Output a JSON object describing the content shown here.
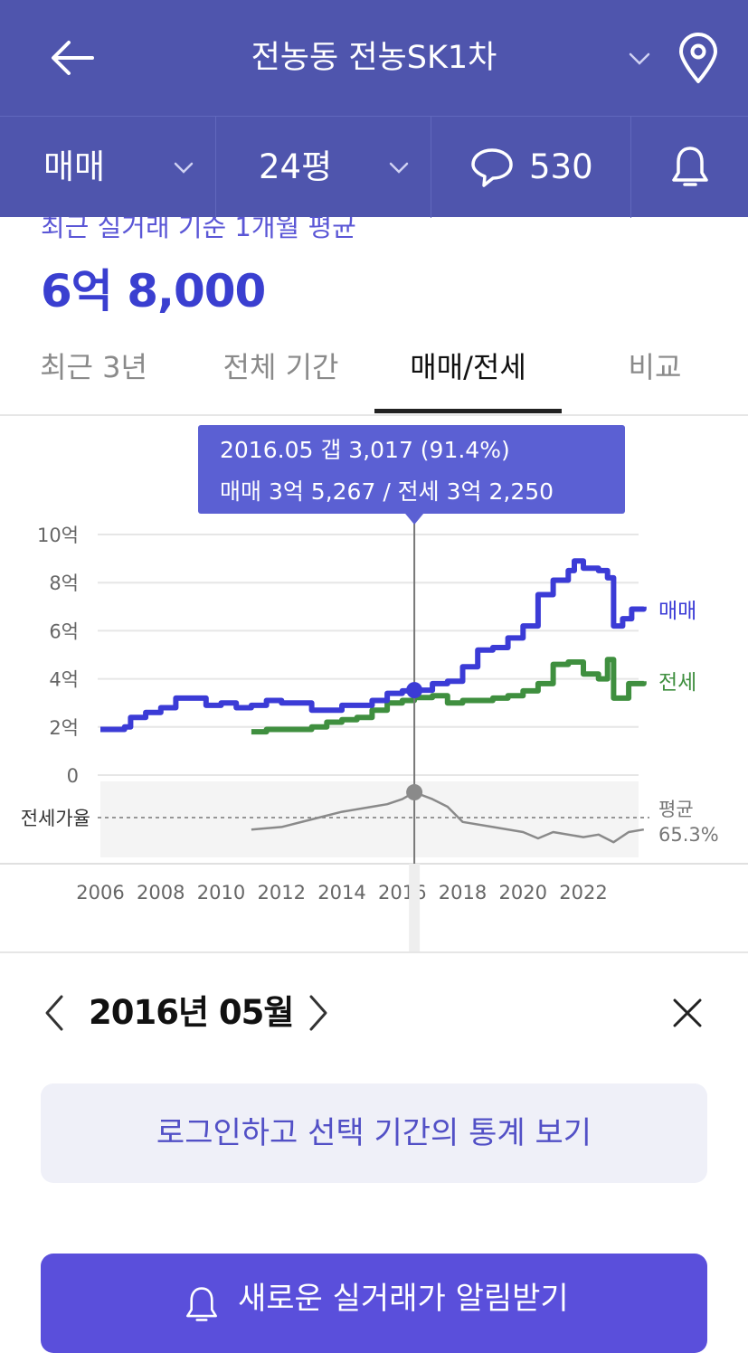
{
  "header": {
    "title": "전농동 전농SK1차",
    "trade_type": "매매",
    "area": "24평",
    "comment_count": "530"
  },
  "summary": {
    "label": "최근 실거래 기준 1개월 평균",
    "price": "6억 8,000"
  },
  "tabs": [
    {
      "label": "최근 3년",
      "active": false
    },
    {
      "label": "전체 기간",
      "active": false
    },
    {
      "label": "매매/전세",
      "active": true
    },
    {
      "label": "비교",
      "active": false
    }
  ],
  "tooltip": {
    "line1": "2016.05  갭 3,017 (91.4%)",
    "line2": "매매 3억 5,267 / 전세 3억 2,250"
  },
  "chart_data": {
    "type": "line",
    "y_ticks": [
      "10억",
      "8억",
      "6억",
      "4억",
      "2억",
      "0"
    ],
    "ylim": [
      0,
      10
    ],
    "x_ticks": [
      "2006",
      "2008",
      "2010",
      "2012",
      "2014",
      "2016",
      "2018",
      "2020",
      "2022"
    ],
    "xlim": [
      2006,
      2024
    ],
    "series": [
      {
        "name": "매매",
        "color": "#3b3bd6",
        "points": [
          [
            2006.0,
            1.9
          ],
          [
            2006.8,
            2.0
          ],
          [
            2007.0,
            2.4
          ],
          [
            2007.5,
            2.6
          ],
          [
            2008.0,
            2.8
          ],
          [
            2008.5,
            3.2
          ],
          [
            2009.0,
            3.2
          ],
          [
            2009.5,
            2.9
          ],
          [
            2010.0,
            3.0
          ],
          [
            2010.5,
            2.8
          ],
          [
            2011.0,
            2.9
          ],
          [
            2011.5,
            3.1
          ],
          [
            2012.0,
            3.0
          ],
          [
            2012.5,
            3.0
          ],
          [
            2013.0,
            2.7
          ],
          [
            2013.5,
            2.7
          ],
          [
            2014.0,
            2.9
          ],
          [
            2014.5,
            2.9
          ],
          [
            2015.0,
            3.1
          ],
          [
            2015.5,
            3.4
          ],
          [
            2016.0,
            3.5
          ],
          [
            2016.4,
            3.53
          ],
          [
            2017.0,
            3.8
          ],
          [
            2017.5,
            3.9
          ],
          [
            2018.0,
            4.5
          ],
          [
            2018.5,
            5.2
          ],
          [
            2019.0,
            5.3
          ],
          [
            2019.5,
            5.7
          ],
          [
            2020.0,
            6.2
          ],
          [
            2020.5,
            7.5
          ],
          [
            2021.0,
            8.1
          ],
          [
            2021.5,
            8.5
          ],
          [
            2021.7,
            8.9
          ],
          [
            2022.0,
            8.6
          ],
          [
            2022.5,
            8.5
          ],
          [
            2022.8,
            8.2
          ],
          [
            2023.0,
            6.2
          ],
          [
            2023.3,
            6.5
          ],
          [
            2023.6,
            6.9
          ],
          [
            2024.0,
            7.0
          ]
        ]
      },
      {
        "name": "전세",
        "color": "#3f8f3f",
        "points": [
          [
            2011.0,
            1.8
          ],
          [
            2011.5,
            1.9
          ],
          [
            2012.0,
            1.9
          ],
          [
            2012.5,
            1.9
          ],
          [
            2013.0,
            2.0
          ],
          [
            2013.5,
            2.2
          ],
          [
            2014.0,
            2.3
          ],
          [
            2014.5,
            2.4
          ],
          [
            2015.0,
            2.7
          ],
          [
            2015.5,
            3.0
          ],
          [
            2016.0,
            3.1
          ],
          [
            2016.4,
            3.225
          ],
          [
            2017.0,
            3.3
          ],
          [
            2017.5,
            3.0
          ],
          [
            2018.0,
            3.1
          ],
          [
            2018.5,
            3.1
          ],
          [
            2019.0,
            3.2
          ],
          [
            2019.5,
            3.3
          ],
          [
            2020.0,
            3.5
          ],
          [
            2020.5,
            3.8
          ],
          [
            2021.0,
            4.6
          ],
          [
            2021.5,
            4.7
          ],
          [
            2022.0,
            4.2
          ],
          [
            2022.5,
            4.0
          ],
          [
            2022.8,
            4.8
          ],
          [
            2023.0,
            3.2
          ],
          [
            2023.5,
            3.8
          ],
          [
            2024.0,
            3.9
          ]
        ]
      },
      {
        "name": "전세가율",
        "color": "#8a8a8a",
        "points": [
          [
            2011.0,
            62
          ],
          [
            2012.0,
            64
          ],
          [
            2013.0,
            70
          ],
          [
            2014.0,
            76
          ],
          [
            2015.0,
            80
          ],
          [
            2015.5,
            82
          ],
          [
            2016.0,
            86
          ],
          [
            2016.4,
            91.4
          ],
          [
            2017.0,
            86
          ],
          [
            2017.5,
            80
          ],
          [
            2018.0,
            68
          ],
          [
            2019.0,
            64
          ],
          [
            2020.0,
            60
          ],
          [
            2020.5,
            55
          ],
          [
            2021.0,
            60
          ],
          [
            2022.0,
            56
          ],
          [
            2022.5,
            58
          ],
          [
            2023.0,
            52
          ],
          [
            2023.5,
            60
          ],
          [
            2024.0,
            62
          ]
        ]
      }
    ],
    "series_labels": {
      "sale": "매매",
      "jeonse": "전세"
    },
    "ratio_label": "전세가율",
    "ratio_avg_label": "평균",
    "ratio_avg_value": "65.3%",
    "selected_x": 2016.4
  },
  "detail": {
    "date": "2016년 05월",
    "login_prompt": "로그인하고 선택 기간의 통계 보기",
    "alert_button": "새로운 실거래가 알림받기"
  }
}
